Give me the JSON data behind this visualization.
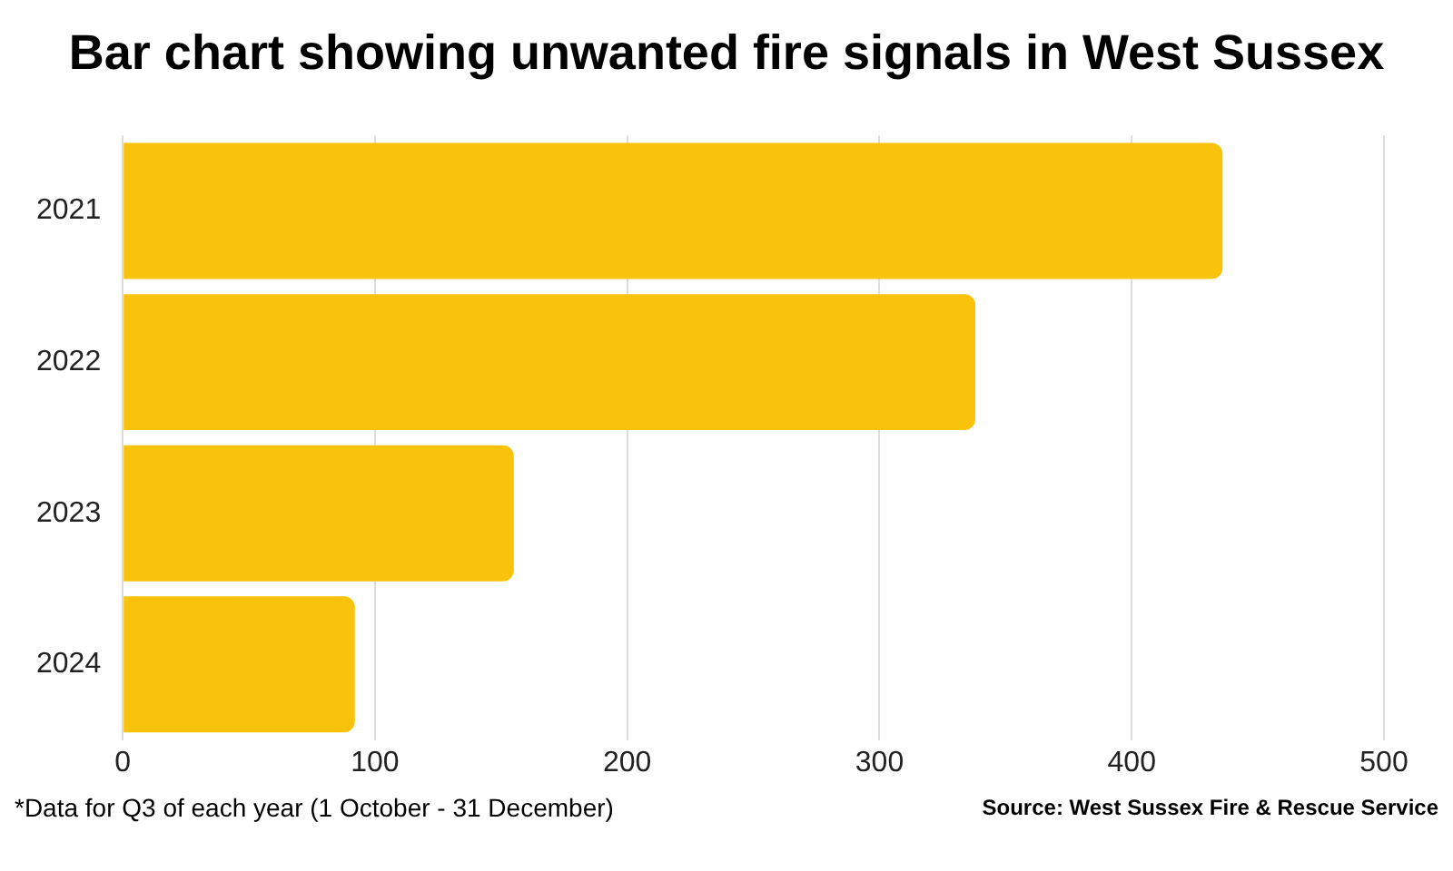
{
  "chart_data": {
    "type": "bar",
    "orientation": "horizontal",
    "title": "Bar chart showing unwanted fire signals in West Sussex",
    "categories": [
      "2021",
      "2022",
      "2023",
      "2024"
    ],
    "values": [
      436,
      338,
      155,
      92
    ],
    "color": "#f9c20b",
    "xlim": [
      0,
      500
    ],
    "xticks": [
      0,
      100,
      200,
      300,
      400,
      500
    ],
    "grid": "x",
    "legend": false,
    "annotations": [
      "*Data for Q3 of each year (1 October -  31 December)",
      "Source: West Sussex Fire & Rescue Service"
    ]
  }
}
